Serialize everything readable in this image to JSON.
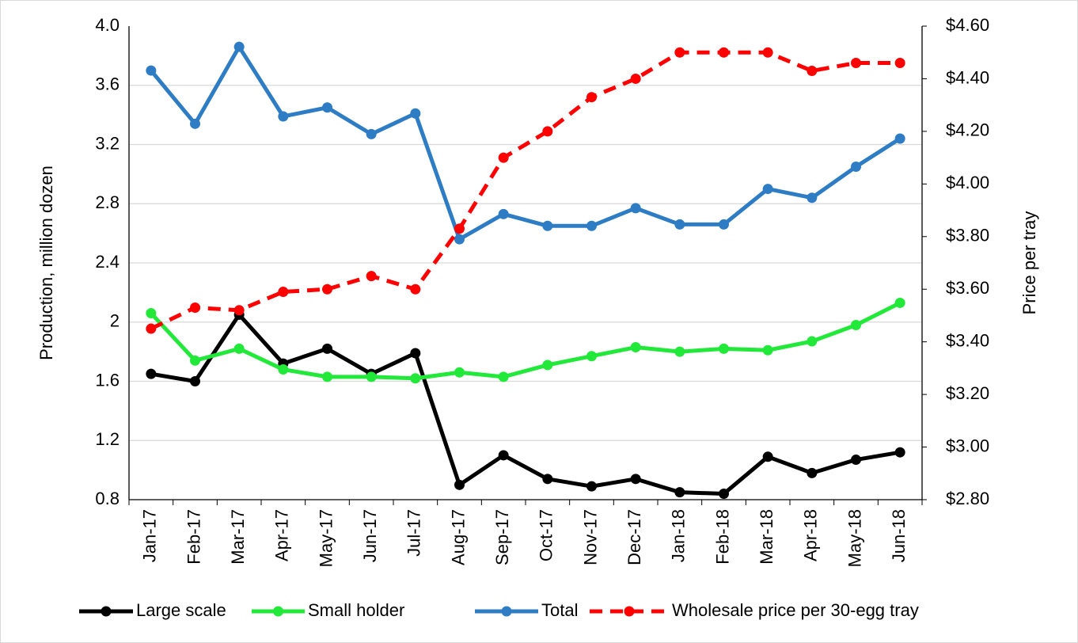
{
  "chart_data": {
    "type": "line",
    "y_label": "Production, million dozen",
    "y2_label": "Price per tray",
    "categories": [
      "Jan-17",
      "Feb-17",
      "Mar-17",
      "Apr-17",
      "May-17",
      "Jun-17",
      "Jul-17",
      "Aug-17",
      "Sep-17",
      "Oct-17",
      "Nov-17",
      "Dec-17",
      "Jan-18",
      "Feb-18",
      "Mar-18",
      "Apr-18",
      "May-18",
      "Jun-18"
    ],
    "ylim": [
      0.8,
      4.0
    ],
    "yticks": [
      0.8,
      1.2,
      1.6,
      2.0,
      2.4,
      2.8,
      3.2,
      3.6,
      {
        "value": 4.0,
        "label": "4.0"
      }
    ],
    "y2lim": [
      2.8,
      4.6
    ],
    "y2ticks": [
      {
        "value": 2.8,
        "label": "$2.80"
      },
      {
        "value": 3.0,
        "label": "$3.00"
      },
      {
        "value": 3.2,
        "label": "$3.20"
      },
      {
        "value": 3.4,
        "label": "$3.40"
      },
      {
        "value": 3.6,
        "label": "$3.60"
      },
      {
        "value": 3.8,
        "label": "$3.80"
      },
      {
        "value": 4.0,
        "label": "$4.00"
      },
      {
        "value": 4.2,
        "label": "$4.20"
      },
      {
        "value": 4.4,
        "label": "$4.40"
      },
      {
        "value": 4.6,
        "label": "$4.60"
      }
    ],
    "grid": true,
    "legend": "bottom",
    "series": [
      {
        "name": "Large scale",
        "color": "#000000",
        "values": [
          1.65,
          1.6,
          2.05,
          1.72,
          1.82,
          1.65,
          1.79,
          0.9,
          1.1,
          0.94,
          0.89,
          0.94,
          0.85,
          0.84,
          1.09,
          0.98,
          1.07,
          1.12
        ]
      },
      {
        "name": "Small holder",
        "color": "#22e83a",
        "values": [
          2.06,
          1.74,
          1.82,
          1.68,
          1.63,
          1.63,
          1.62,
          1.66,
          1.63,
          1.71,
          1.77,
          1.83,
          1.8,
          1.82,
          1.81,
          1.87,
          1.98,
          2.13
        ]
      },
      {
        "name": "Total",
        "color": "#2e7dc4",
        "values": [
          3.7,
          3.34,
          3.86,
          3.39,
          3.45,
          3.27,
          3.41,
          2.56,
          2.73,
          2.65,
          2.65,
          2.77,
          2.66,
          2.66,
          2.9,
          2.84,
          3.05,
          3.24
        ]
      },
      {
        "name": "Wholesale price per 30-egg tray",
        "color": "#ff0000",
        "dashed": true,
        "axis": "y2",
        "values": [
          3.45,
          3.53,
          3.52,
          3.59,
          3.6,
          3.65,
          3.6,
          3.83,
          4.1,
          4.2,
          4.33,
          4.4,
          4.5,
          4.5,
          4.5,
          4.43,
          4.46,
          4.46
        ]
      }
    ]
  }
}
